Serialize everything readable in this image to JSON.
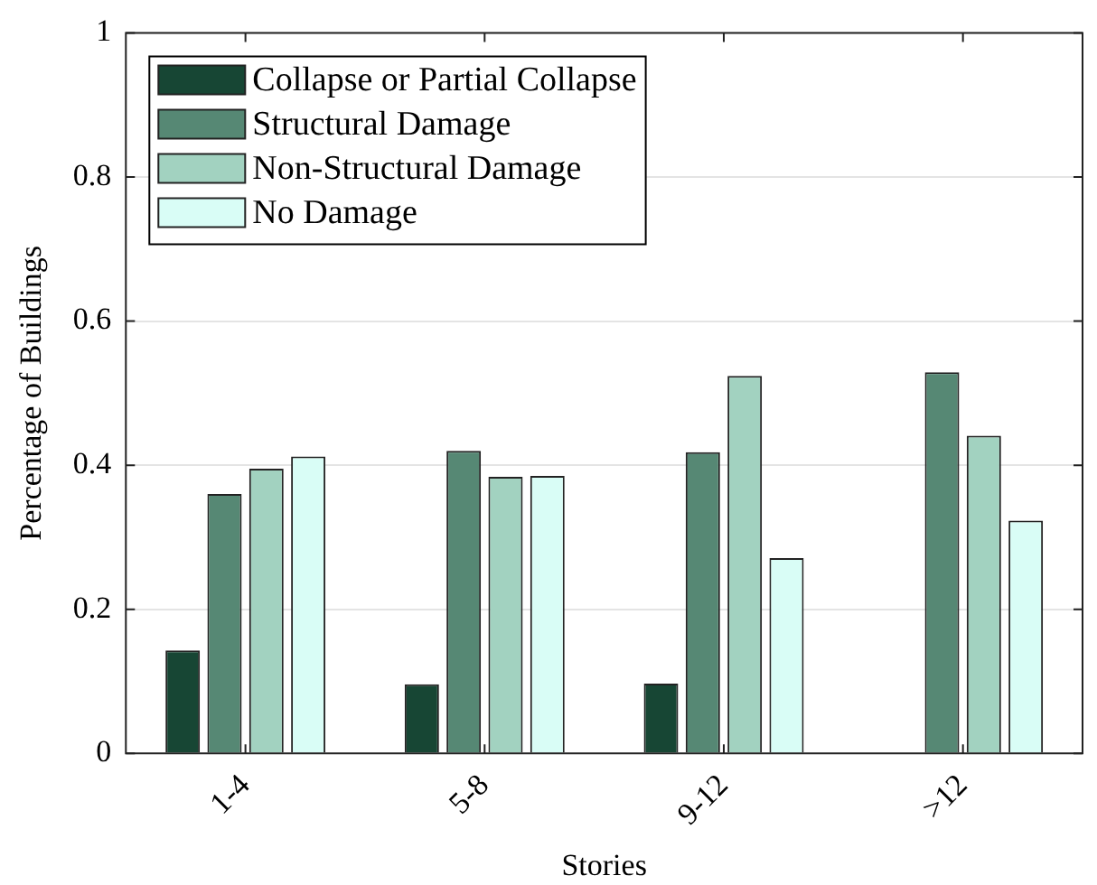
{
  "chart_data": {
    "type": "bar",
    "xlabel": "Stories",
    "ylabel": "Percentage of Buildings",
    "categories": [
      "1-4",
      "5-8",
      "9-12",
      ">12"
    ],
    "series": [
      {
        "name": "Collapse or Partial Collapse",
        "color": "#174634",
        "values": [
          0.143,
          0.096,
          0.097,
          0
        ]
      },
      {
        "name": "Structural Damage",
        "color": "#568874",
        "values": [
          0.36,
          0.42,
          0.418,
          0.529
        ]
      },
      {
        "name": "Non-Structural Damage",
        "color": "#a2d2c0",
        "values": [
          0.395,
          0.384,
          0.524,
          0.441
        ]
      },
      {
        "name": "No Damage",
        "color": "#d9fdf6",
        "values": [
          0.412,
          0.385,
          0.271,
          0.323
        ]
      }
    ],
    "ylim": [
      0,
      1
    ],
    "yticks": [
      0,
      0.2,
      0.4,
      0.6,
      0.8,
      1
    ],
    "grid": "y",
    "legend": "top left"
  }
}
